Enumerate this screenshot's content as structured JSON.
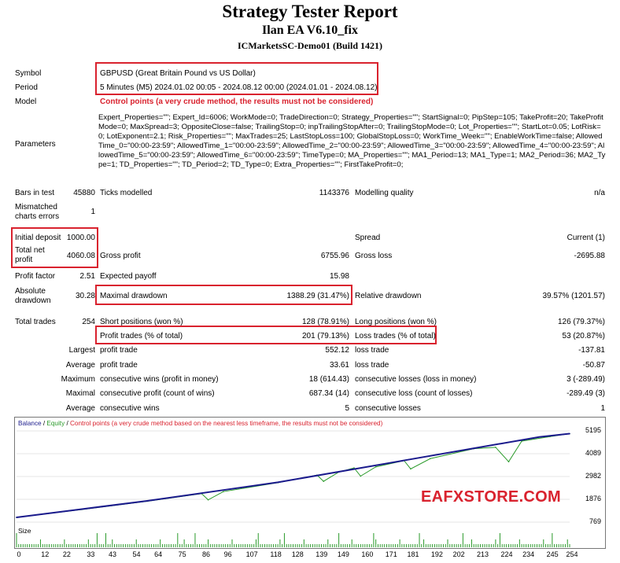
{
  "header": {
    "title": "Strategy Tester Report",
    "ea": "Ilan EA V6.10_fix",
    "server": "ICMarketsSC-Demo01 (Build 1421)"
  },
  "info": {
    "symbol_label": "Symbol",
    "symbol_value": "GBPUSD (Great Britain Pound vs US Dollar)",
    "period_label": "Period",
    "period_value": "5 Minutes (M5) 2024.01.02 00:05 - 2024.08.12 00:00 (2024.01.01 - 2024.08.12)",
    "model_label": "Model",
    "model_value": "Control points (a very crude method, the results must not be considered)",
    "parameters_label": "Parameters",
    "parameters_value": "Expert_Properties=\"\"; Expert_Id=6006; WorkMode=0; TradeDirection=0; Strategy_Properties=\"\"; StartSignal=0; PipStep=105; TakeProfit=20; TakeProfitMode=0; MaxSpread=3; OppositeClose=false; TrailingStop=0; inpTrailingStopAfter=0; TrailingStopMode=0; Lot_Properties=\"\"; StartLot=0.05; LotRisk=0; LotExponent=2.1; Risk_Properties=\"\"; MaxTrades=25; LastStopLoss=100; GlobalStopLoss=0; WorkTime_Week=\"\"; EnableWorkTime=false; AllowedTime_0=\"00:00-23:59\"; AllowedTime_1=\"00:00-23:59\"; AllowedTime_2=\"00:00-23:59\"; AllowedTime_3=\"00:00-23:59\"; AllowedTime_4=\"00:00-23:59\"; AllowedTime_5=\"00:00-23:59\"; AllowedTime_6=\"00:00-23:59\"; TimeType=0; MA_Properties=\"\"; MA1_Period=13; MA1_Type=1; MA2_Period=36; MA2_Type=1; TD_Properties=\"\"; TD_Period=2; TD_Type=0; Extra_Properties=\"\"; FirstTakeProfit=0;"
  },
  "stats": {
    "bars_label": "Bars in test",
    "bars_value": "45880",
    "ticks_label": "Ticks modelled",
    "ticks_value": "1143376",
    "quality_label": "Modelling quality",
    "quality_value": "n/a",
    "mismatch_label_1": "Mismatched",
    "mismatch_label_2": "charts errors",
    "mismatch_value": "1",
    "deposit_label": "Initial deposit",
    "deposit_value": "1000.00",
    "spread_label": "Spread",
    "spread_value": "Current (1)",
    "netprofit_label_1": "Total net",
    "netprofit_label_2": "profit",
    "netprofit_value": "4060.08",
    "grossprofit_label": "Gross profit",
    "grossprofit_value": "6755.96",
    "grossloss_label": "Gross loss",
    "grossloss_value": "-2695.88",
    "pf_label": "Profit factor",
    "pf_value": "2.51",
    "payoff_label": "Expected payoff",
    "payoff_value": "15.98",
    "absdd_label_1": "Absolute",
    "absdd_label_2": "drawdown",
    "absdd_value": "30.28",
    "maxdd_label": "Maximal drawdown",
    "maxdd_value": "1388.29 (31.47%)",
    "reldd_label": "Relative drawdown",
    "reldd_value": "39.57% (1201.57)",
    "trades_label": "Total trades",
    "trades_value": "254",
    "short_label": "Short positions (won %)",
    "short_value": "128 (78.91%)",
    "long_label": "Long positions (won %)",
    "long_value": "126 (79.37%)",
    "profit_trades_label": "Profit trades (% of total)",
    "profit_trades_value": "201 (79.13%)",
    "loss_trades_label": "Loss trades (% of total)",
    "loss_trades_value": "53 (20.87%)",
    "largest_label": "Largest",
    "largest_profit_label": "profit trade",
    "largest_profit_value": "552.12",
    "largest_loss_label": "loss trade",
    "largest_loss_value": "-137.81",
    "average_label": "Average",
    "average_profit_label": "profit trade",
    "average_profit_value": "33.61",
    "average_loss_label": "loss trade",
    "average_loss_value": "-50.87",
    "maximum_label": "Maximum",
    "max_wins_label": "consecutive wins (profit in money)",
    "max_wins_value": "18 (614.43)",
    "max_losses_label": "consecutive losses (loss in money)",
    "max_losses_value": "3 (-289.49)",
    "maximal_label": "Maximal",
    "maximal_profit_label": "consecutive profit (count of wins)",
    "maximal_profit_value": "687.34 (14)",
    "maximal_loss_label": "consecutive loss (count of losses)",
    "maximal_loss_value": "-289.49 (3)",
    "avg_cons_label": "Average",
    "avg_wins_label": "consecutive wins",
    "avg_wins_value": "5",
    "avg_losses_label": "consecutive losses",
    "avg_losses_value": "1"
  },
  "chart_legend": {
    "balance": "Balance",
    "sep1": " / ",
    "equity": "Equity",
    "sep2": " / ",
    "note": "Control points (a very crude method based on the nearest less timeframe, the results must not be considered)"
  },
  "colors": {
    "balance": "#1a1a8c",
    "equity": "#2a9a2a",
    "note": "#d9222e",
    "highlight": "#d9222e"
  },
  "size_label": "Size",
  "watermark": "EAFXSTORE.COM",
  "chart_data": {
    "type": "line",
    "y_ticks": [
      "5195",
      "4089",
      "2982",
      "1876",
      "769"
    ],
    "ylim": [
      769,
      5195
    ],
    "x_ticks": [
      "0",
      "12",
      "22",
      "33",
      "43",
      "54",
      "64",
      "75",
      "86",
      "96",
      "107",
      "118",
      "128",
      "139",
      "149",
      "160",
      "171",
      "181",
      "192",
      "202",
      "213",
      "224",
      "234",
      "245",
      "254"
    ],
    "xlim": [
      0,
      254
    ],
    "series": [
      {
        "name": "Balance",
        "x": [
          0,
          30,
          60,
          90,
          120,
          150,
          180,
          210,
          240,
          254
        ],
        "values": [
          1000,
          1400,
          1800,
          2250,
          2700,
          3250,
          3800,
          4350,
          4900,
          5060
        ]
      },
      {
        "name": "Equity",
        "x": [
          0,
          30,
          60,
          85,
          88,
          95,
          120,
          138,
          141,
          148,
          155,
          158,
          165,
          178,
          181,
          190,
          210,
          220,
          226,
          232,
          245,
          254
        ],
        "values": [
          1000,
          1380,
          1780,
          2150,
          1850,
          2250,
          2680,
          3050,
          2750,
          3200,
          3400,
          3000,
          3450,
          3750,
          3350,
          3850,
          4330,
          4400,
          3700,
          4700,
          4920,
          5060
        ]
      }
    ]
  }
}
